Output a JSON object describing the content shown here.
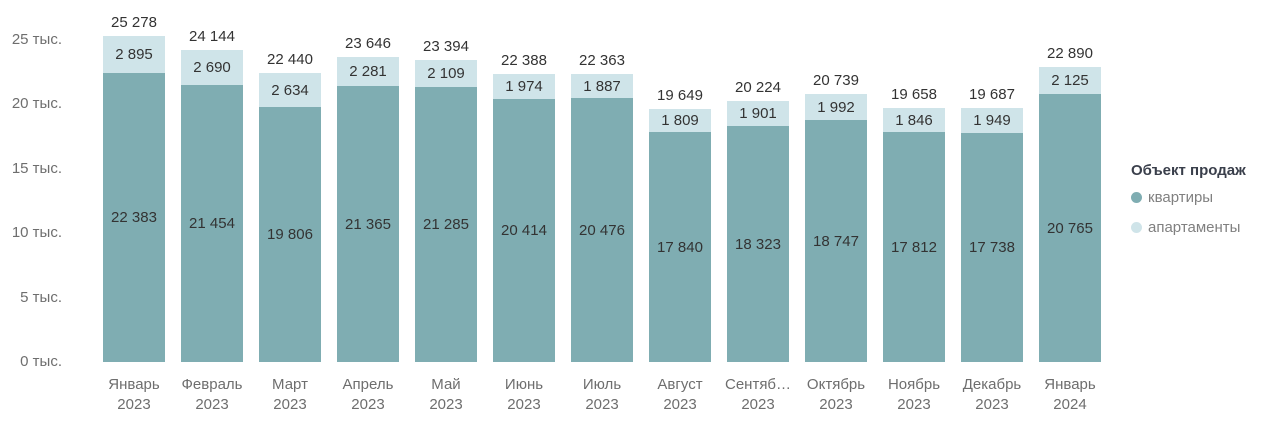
{
  "chart_data": {
    "type": "bar",
    "stacked": true,
    "title": "",
    "categories": [
      {
        "month": "Январь",
        "year": "2023"
      },
      {
        "month": "Февраль",
        "year": "2023"
      },
      {
        "month": "Март",
        "year": "2023"
      },
      {
        "month": "Апрель",
        "year": "2023"
      },
      {
        "month": "Май",
        "year": "2023"
      },
      {
        "month": "Июнь",
        "year": "2023"
      },
      {
        "month": "Июль",
        "year": "2023"
      },
      {
        "month": "Август",
        "year": "2023"
      },
      {
        "month": "Сентяб…",
        "year": "2023"
      },
      {
        "month": "Октябрь",
        "year": "2023"
      },
      {
        "month": "Ноябрь",
        "year": "2023"
      },
      {
        "month": "Декабрь",
        "year": "2023"
      },
      {
        "month": "Январь",
        "year": "2024"
      }
    ],
    "series": [
      {
        "name": "квартиры",
        "color": "#7fadb2",
        "values": [
          22383,
          21454,
          19806,
          21365,
          21285,
          20414,
          20476,
          17840,
          18323,
          18747,
          17812,
          17738,
          20765
        ]
      },
      {
        "name": "апартаменты",
        "color": "#cfe4e9",
        "values": [
          2895,
          2690,
          2634,
          2281,
          2109,
          1974,
          1887,
          1809,
          1901,
          1992,
          1846,
          1949,
          2125
        ]
      }
    ],
    "totals": [
      25278,
      24144,
      22440,
      23646,
      23394,
      22388,
      22363,
      19649,
      20224,
      20739,
      19658,
      19687,
      22890
    ],
    "y_axis": {
      "ticks": [
        {
          "value": 0,
          "label": "0 тыс."
        },
        {
          "value": 5000,
          "label": "5 тыс."
        },
        {
          "value": 10000,
          "label": "10 тыс."
        },
        {
          "value": 15000,
          "label": "15 тыс."
        },
        {
          "value": 20000,
          "label": "20 тыс."
        },
        {
          "value": 25000,
          "label": "25 тыс."
        }
      ],
      "range": [
        0,
        26000
      ]
    },
    "grid": false,
    "legend": {
      "title": "Объект продаж",
      "position": "right"
    },
    "label_color": "#333333",
    "axis_text_color": "#6e6e6e"
  }
}
